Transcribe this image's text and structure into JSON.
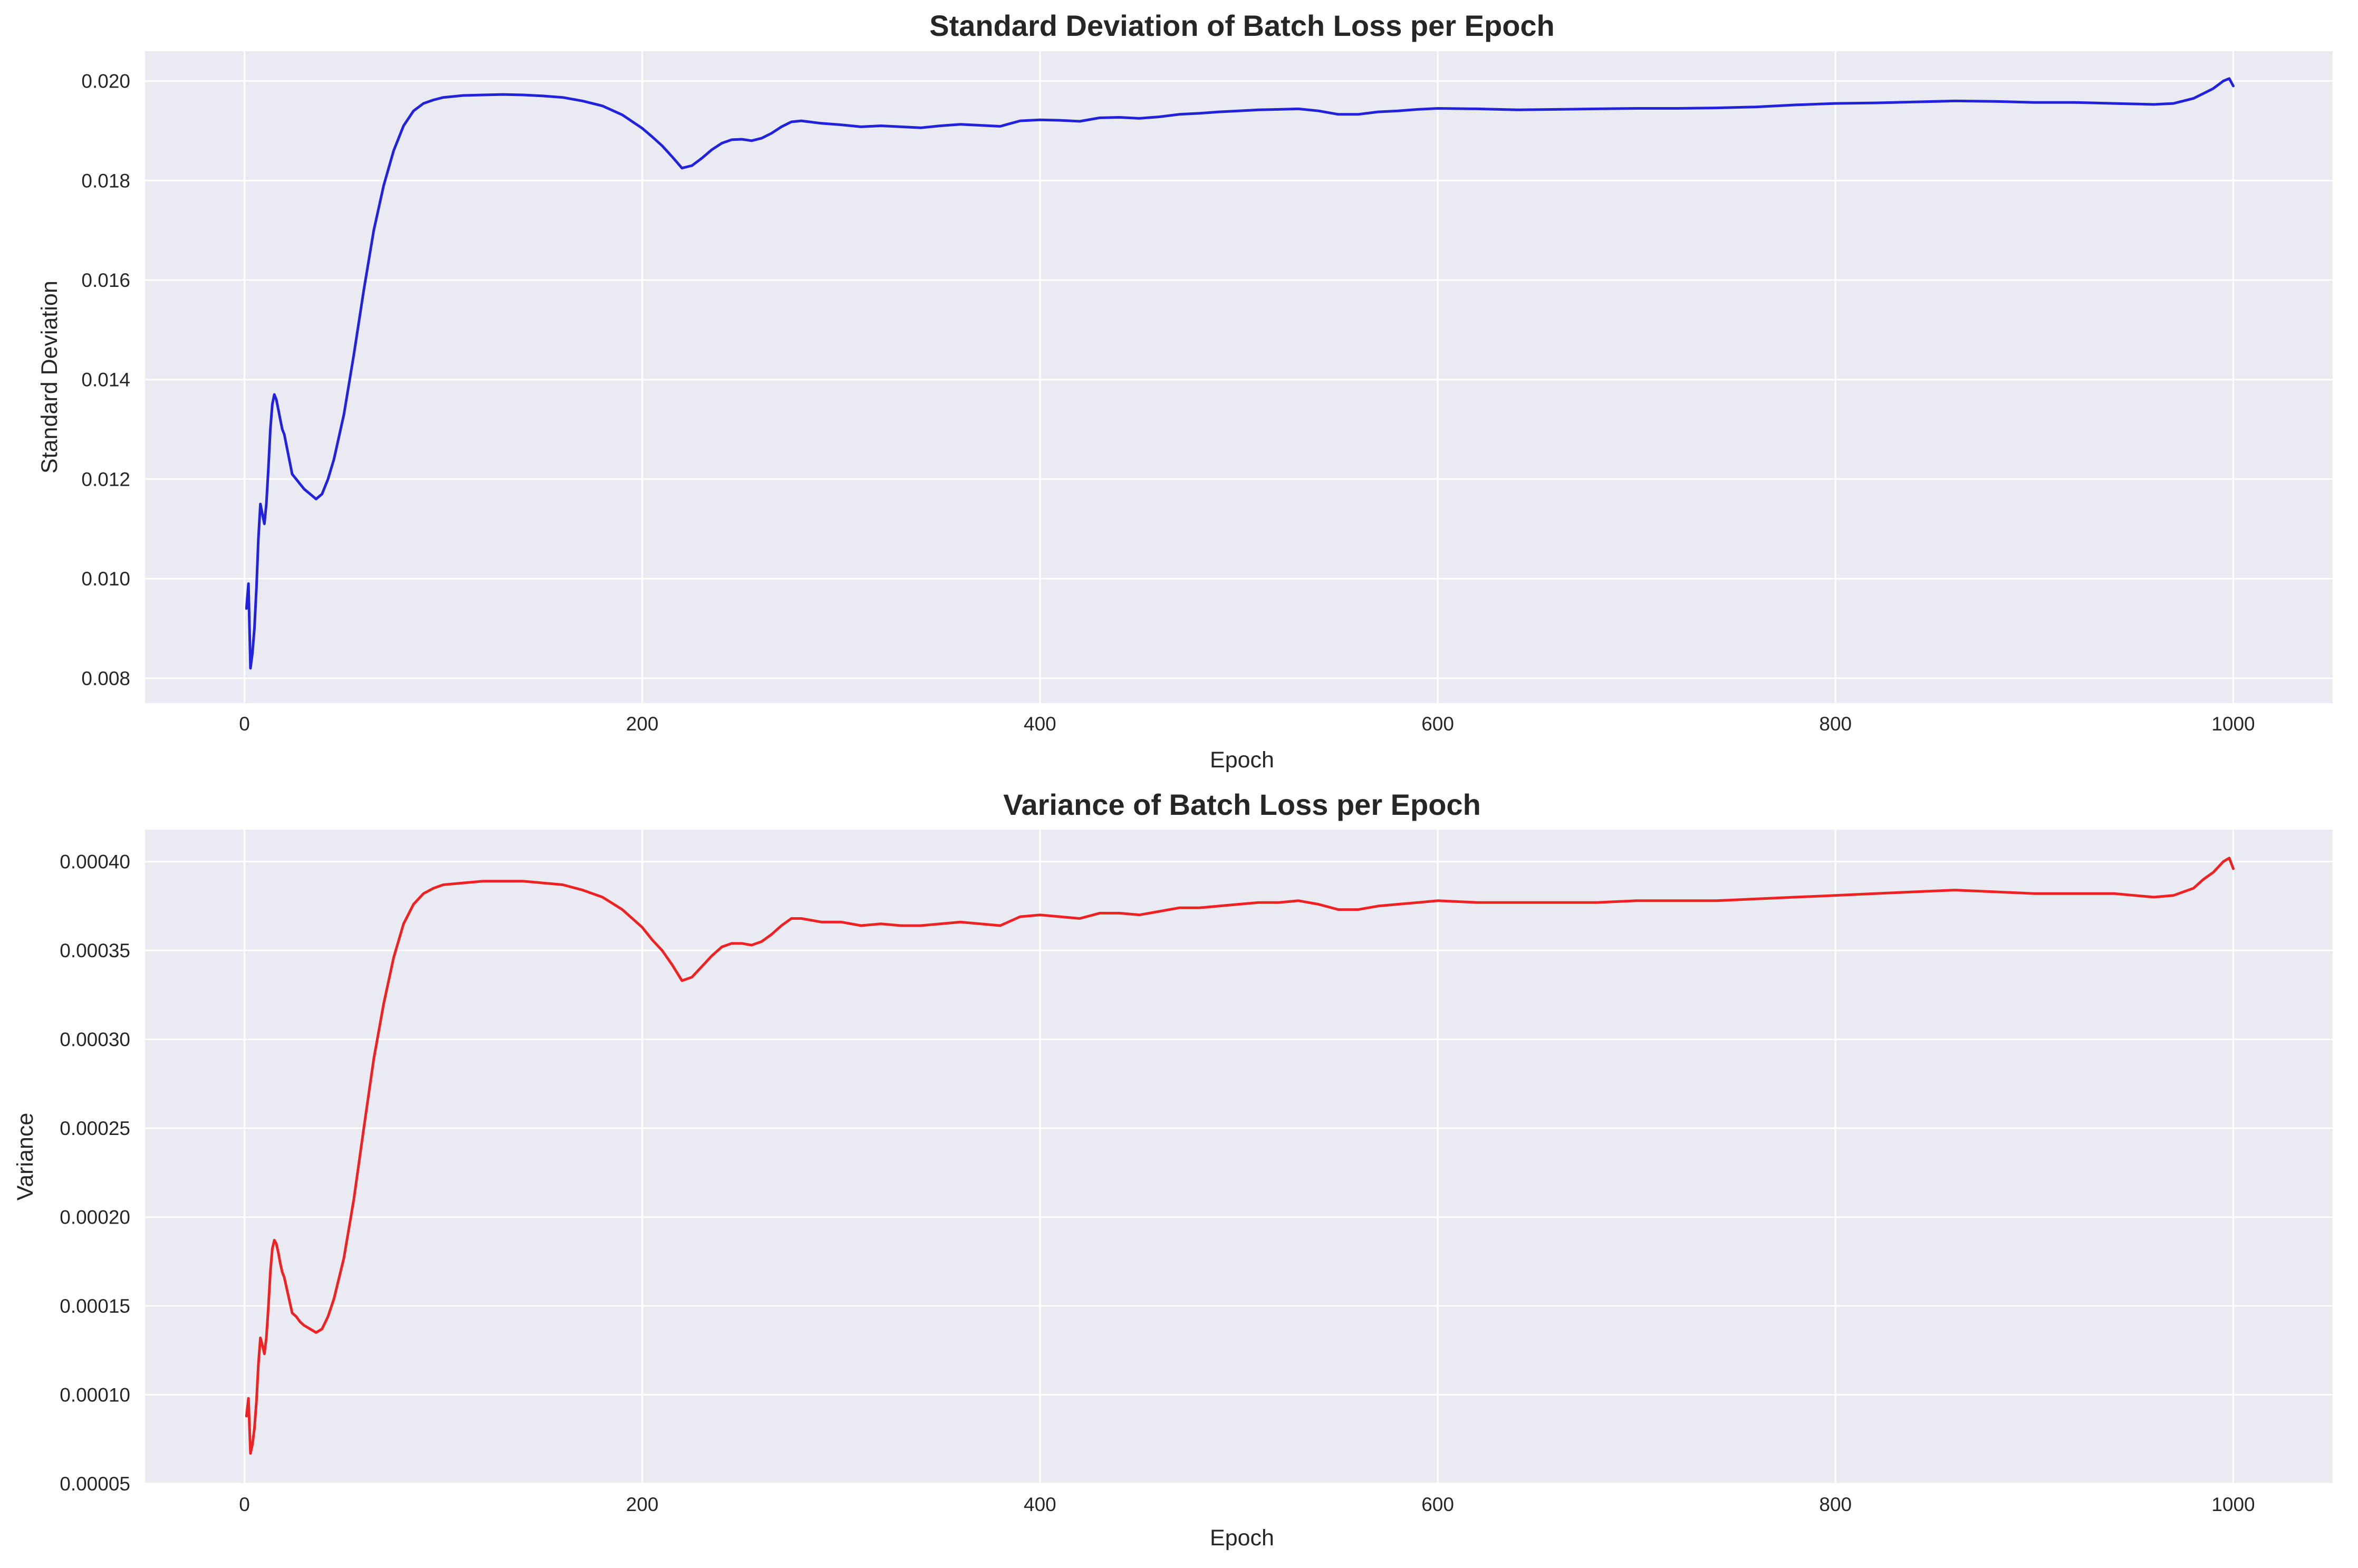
{
  "chart_data": [
    {
      "type": "line",
      "title": "Standard Deviation of Batch Loss per Epoch",
      "xlabel": "Epoch",
      "ylabel": "Standard Deviation",
      "xlim": [
        -50,
        1050
      ],
      "ylim": [
        0.0075,
        0.0206
      ],
      "xticks": [
        0,
        200,
        400,
        600,
        800,
        1000
      ],
      "xtick_labels": [
        "0",
        "200",
        "400",
        "600",
        "800",
        "1000"
      ],
      "yticks": [
        0.008,
        0.01,
        0.012,
        0.014,
        0.016,
        0.018,
        0.02
      ],
      "ytick_labels": [
        "0.008",
        "0.010",
        "0.012",
        "0.014",
        "0.016",
        "0.018",
        "0.020"
      ],
      "grid": true,
      "line_color": "#2222dd",
      "series": [
        {
          "x": [
            1,
            2,
            3,
            4,
            5,
            6,
            7,
            8,
            9,
            10,
            11,
            12,
            13,
            14,
            15,
            16,
            17,
            18,
            19,
            20,
            22,
            24,
            26,
            28,
            30,
            33,
            36,
            39,
            42,
            45,
            50,
            55,
            60,
            65,
            70,
            75,
            80,
            85,
            90,
            95,
            100,
            110,
            120,
            130,
            140,
            150,
            160,
            170,
            180,
            190,
            200,
            205,
            210,
            215,
            220,
            225,
            230,
            235,
            240,
            245,
            250,
            255,
            260,
            265,
            270,
            275,
            280,
            290,
            300,
            310,
            320,
            330,
            340,
            350,
            360,
            370,
            380,
            390,
            400,
            410,
            420,
            430,
            440,
            450,
            460,
            470,
            480,
            490,
            500,
            510,
            520,
            530,
            540,
            550,
            560,
            570,
            580,
            590,
            600,
            620,
            640,
            660,
            680,
            700,
            720,
            740,
            760,
            780,
            800,
            820,
            840,
            860,
            880,
            900,
            920,
            940,
            960,
            970,
            980,
            985,
            990,
            995,
            998,
            1000
          ],
          "y": [
            0.0094,
            0.0099,
            0.0082,
            0.0085,
            0.009,
            0.0098,
            0.0108,
            0.0115,
            0.0113,
            0.0111,
            0.0115,
            0.0122,
            0.013,
            0.0135,
            0.0137,
            0.0136,
            0.0134,
            0.0132,
            0.013,
            0.0129,
            0.0125,
            0.0121,
            0.012,
            0.0119,
            0.0118,
            0.0117,
            0.0116,
            0.0117,
            0.012,
            0.0124,
            0.0133,
            0.0145,
            0.0158,
            0.017,
            0.0179,
            0.0186,
            0.0191,
            0.0194,
            0.01955,
            0.01962,
            0.01967,
            0.01971,
            0.01972,
            0.01973,
            0.01972,
            0.0197,
            0.01967,
            0.0196,
            0.0195,
            0.01932,
            0.01905,
            0.01888,
            0.0187,
            0.01848,
            0.01825,
            0.0183,
            0.01845,
            0.01862,
            0.01875,
            0.01882,
            0.01883,
            0.0188,
            0.01885,
            0.01895,
            0.01908,
            0.01918,
            0.0192,
            0.01915,
            0.01912,
            0.01908,
            0.0191,
            0.01908,
            0.01906,
            0.0191,
            0.01913,
            0.01911,
            0.01909,
            0.0192,
            0.01922,
            0.01921,
            0.01919,
            0.01926,
            0.01927,
            0.01925,
            0.01928,
            0.01933,
            0.01935,
            0.01938,
            0.0194,
            0.01942,
            0.01943,
            0.01944,
            0.0194,
            0.01933,
            0.01933,
            0.01938,
            0.0194,
            0.01943,
            0.01945,
            0.01944,
            0.01942,
            0.01943,
            0.01944,
            0.01945,
            0.01945,
            0.01946,
            0.01948,
            0.01952,
            0.01955,
            0.01956,
            0.01958,
            0.0196,
            0.01959,
            0.01957,
            0.01957,
            0.01955,
            0.01953,
            0.01955,
            0.01965,
            0.01975,
            0.01985,
            0.02,
            0.02005,
            0.0199
          ]
        }
      ]
    },
    {
      "type": "line",
      "title": "Variance of Batch Loss per Epoch",
      "xlabel": "Epoch",
      "ylabel": "Variance",
      "xlim": [
        -50,
        1050
      ],
      "ylim": [
        5e-05,
        0.000418
      ],
      "xticks": [
        0,
        200,
        400,
        600,
        800,
        1000
      ],
      "xtick_labels": [
        "0",
        "200",
        "400",
        "600",
        "800",
        "1000"
      ],
      "yticks": [
        5e-05,
        0.0001,
        0.00015,
        0.0002,
        0.00025,
        0.0003,
        0.00035,
        0.0004
      ],
      "ytick_labels": [
        "0.00005",
        "0.00010",
        "0.00015",
        "0.00020",
        "0.00025",
        "0.00030",
        "0.00035",
        "0.00040"
      ],
      "grid": true,
      "line_color": "#ee2222",
      "series": [
        {
          "x": [
            1,
            2,
            3,
            4,
            5,
            6,
            7,
            8,
            9,
            10,
            11,
            12,
            13,
            14,
            15,
            16,
            17,
            18,
            19,
            20,
            22,
            24,
            26,
            28,
            30,
            33,
            36,
            39,
            42,
            45,
            50,
            55,
            60,
            65,
            70,
            75,
            80,
            85,
            90,
            95,
            100,
            110,
            120,
            130,
            140,
            150,
            160,
            170,
            180,
            190,
            200,
            205,
            210,
            215,
            220,
            225,
            230,
            235,
            240,
            245,
            250,
            255,
            260,
            265,
            270,
            275,
            280,
            290,
            300,
            310,
            320,
            330,
            340,
            350,
            360,
            370,
            380,
            390,
            400,
            410,
            420,
            430,
            440,
            450,
            460,
            470,
            480,
            490,
            500,
            510,
            520,
            530,
            540,
            550,
            560,
            570,
            580,
            590,
            600,
            620,
            640,
            660,
            680,
            700,
            720,
            740,
            760,
            780,
            800,
            820,
            840,
            860,
            880,
            900,
            920,
            940,
            960,
            970,
            980,
            985,
            990,
            995,
            998,
            1000
          ],
          "y": [
            8.8e-05,
            9.8e-05,
            6.7e-05,
            7.2e-05,
            8.1e-05,
            9.6e-05,
            0.000117,
            0.000132,
            0.000128,
            0.000123,
            0.000132,
            0.000149,
            0.000169,
            0.000182,
            0.000187,
            0.000185,
            0.00018,
            0.000174,
            0.000169,
            0.000166,
            0.000156,
            0.000146,
            0.000144,
            0.000141,
            0.000139,
            0.000137,
            0.000135,
            0.000137,
            0.000144,
            0.000154,
            0.000177,
            0.00021,
            0.00025,
            0.000289,
            0.00032,
            0.000346,
            0.000365,
            0.000376,
            0.000382,
            0.000385,
            0.000387,
            0.000388,
            0.000389,
            0.000389,
            0.000389,
            0.000388,
            0.000387,
            0.000384,
            0.00038,
            0.000373,
            0.000363,
            0.000356,
            0.00035,
            0.000342,
            0.000333,
            0.000335,
            0.000341,
            0.000347,
            0.000352,
            0.000354,
            0.000354,
            0.000353,
            0.000355,
            0.000359,
            0.000364,
            0.000368,
            0.000368,
            0.000366,
            0.000366,
            0.000364,
            0.000365,
            0.000364,
            0.000364,
            0.000365,
            0.000366,
            0.000365,
            0.000364,
            0.000369,
            0.00037,
            0.000369,
            0.000368,
            0.000371,
            0.000371,
            0.00037,
            0.000372,
            0.000374,
            0.000374,
            0.000375,
            0.000376,
            0.000377,
            0.000377,
            0.000378,
            0.000376,
            0.000373,
            0.000373,
            0.000375,
            0.000376,
            0.000377,
            0.000378,
            0.000377,
            0.000377,
            0.000377,
            0.000377,
            0.000378,
            0.000378,
            0.000378,
            0.000379,
            0.00038,
            0.000381,
            0.000382,
            0.000383,
            0.000384,
            0.000383,
            0.000382,
            0.000382,
            0.000382,
            0.00038,
            0.000381,
            0.000385,
            0.00039,
            0.000394,
            0.0004,
            0.000402,
            0.000396
          ]
        }
      ]
    }
  ]
}
